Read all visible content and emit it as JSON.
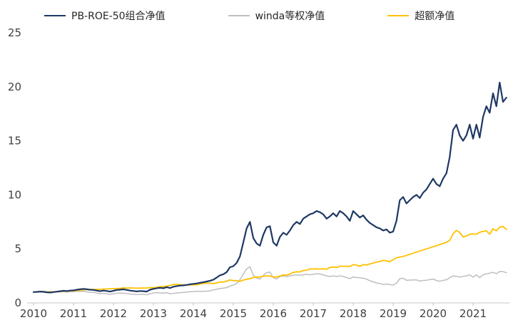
{
  "chart_data": {
    "type": "line",
    "title": "",
    "xlabel": "",
    "ylabel": "",
    "ylim": [
      0,
      25
    ],
    "y_ticks": [
      0,
      5,
      10,
      15,
      20,
      25
    ],
    "x_tick_labels": [
      "2010",
      "2011",
      "2012",
      "2013",
      "2014",
      "2015",
      "2016",
      "2017",
      "2018",
      "2019",
      "2020",
      "2021"
    ],
    "x_unit": "monthly",
    "x_start": "2010-01",
    "grid": false,
    "legend_position": "top",
    "axis_color": "#c6c6c6",
    "series": [
      {
        "name": "PB-ROE-50组合净值",
        "color": "#1f3864",
        "values": [
          1.0,
          1.02,
          1.05,
          1.03,
          0.98,
          0.96,
          1.0,
          1.04,
          1.08,
          1.12,
          1.1,
          1.14,
          1.16,
          1.22,
          1.26,
          1.3,
          1.26,
          1.22,
          1.2,
          1.14,
          1.08,
          1.14,
          1.1,
          1.05,
          1.12,
          1.2,
          1.22,
          1.26,
          1.2,
          1.14,
          1.1,
          1.06,
          1.1,
          1.08,
          1.05,
          1.22,
          1.3,
          1.36,
          1.4,
          1.36,
          1.46,
          1.38,
          1.5,
          1.56,
          1.6,
          1.62,
          1.66,
          1.72,
          1.76,
          1.8,
          1.86,
          1.92,
          1.98,
          2.05,
          2.15,
          2.35,
          2.55,
          2.65,
          2.85,
          3.3,
          3.4,
          3.7,
          4.3,
          5.6,
          6.9,
          7.5,
          6.0,
          5.5,
          5.3,
          6.3,
          7.0,
          7.1,
          5.6,
          5.3,
          6.1,
          6.5,
          6.3,
          6.7,
          7.2,
          7.5,
          7.3,
          7.8,
          8.0,
          8.2,
          8.3,
          8.5,
          8.4,
          8.2,
          7.8,
          8.0,
          8.3,
          8.0,
          8.5,
          8.3,
          8.0,
          7.6,
          8.5,
          8.2,
          7.9,
          8.1,
          7.7,
          7.4,
          7.2,
          7.0,
          6.9,
          6.7,
          6.8,
          6.5,
          6.6,
          7.6,
          9.5,
          9.8,
          9.2,
          9.5,
          9.8,
          10.0,
          9.7,
          10.2,
          10.5,
          11.0,
          11.5,
          11.0,
          10.8,
          11.5,
          12.0,
          13.5,
          16.0,
          16.5,
          15.5,
          15.0,
          15.5,
          16.5,
          15.2,
          16.5,
          15.3,
          17.2,
          18.2,
          17.6,
          19.4,
          18.2,
          20.4,
          18.6,
          19.0
        ]
      },
      {
        "name": "winda等权净值",
        "color": "#bfbfbf",
        "values": [
          1.0,
          1.01,
          1.03,
          0.99,
          0.95,
          0.93,
          0.97,
          1.0,
          1.02,
          1.05,
          1.01,
          1.03,
          1.04,
          1.07,
          1.06,
          1.08,
          1.02,
          0.98,
          0.97,
          0.92,
          0.86,
          0.89,
          0.85,
          0.8,
          0.85,
          0.9,
          0.92,
          0.9,
          0.88,
          0.82,
          0.8,
          0.78,
          0.8,
          0.79,
          0.76,
          0.86,
          0.92,
          0.95,
          0.93,
          0.9,
          0.95,
          0.85,
          0.88,
          0.92,
          0.95,
          0.97,
          1.0,
          1.03,
          1.05,
          1.08,
          1.06,
          1.06,
          1.09,
          1.12,
          1.2,
          1.27,
          1.32,
          1.37,
          1.42,
          1.55,
          1.65,
          1.8,
          2.15,
          2.65,
          3.15,
          3.35,
          2.55,
          2.3,
          2.2,
          2.55,
          2.8,
          2.85,
          2.35,
          2.2,
          2.45,
          2.5,
          2.45,
          2.5,
          2.55,
          2.6,
          2.55,
          2.6,
          2.65,
          2.6,
          2.65,
          2.7,
          2.68,
          2.6,
          2.5,
          2.45,
          2.5,
          2.45,
          2.5,
          2.45,
          2.35,
          2.25,
          2.4,
          2.35,
          2.33,
          2.28,
          2.2,
          2.05,
          1.95,
          1.85,
          1.8,
          1.7,
          1.75,
          1.7,
          1.65,
          1.82,
          2.24,
          2.28,
          2.09,
          2.11,
          2.13,
          2.13,
          2.02,
          2.08,
          2.1,
          2.16,
          2.21,
          2.08,
          2.0,
          2.09,
          2.14,
          2.33,
          2.5,
          2.46,
          2.38,
          2.46,
          2.5,
          2.6,
          2.38,
          2.6,
          2.34,
          2.6,
          2.7,
          2.75,
          2.83,
          2.7,
          2.91,
          2.9,
          2.79
        ]
      },
      {
        "name": "超额净值",
        "color": "#ffc000",
        "values": [
          1.0,
          1.01,
          1.02,
          1.04,
          1.03,
          1.03,
          1.03,
          1.04,
          1.06,
          1.07,
          1.09,
          1.11,
          1.12,
          1.14,
          1.19,
          1.2,
          1.24,
          1.24,
          1.24,
          1.24,
          1.26,
          1.28,
          1.29,
          1.31,
          1.32,
          1.33,
          1.33,
          1.4,
          1.36,
          1.39,
          1.38,
          1.36,
          1.38,
          1.37,
          1.38,
          1.42,
          1.41,
          1.43,
          1.51,
          1.51,
          1.54,
          1.62,
          1.7,
          1.7,
          1.68,
          1.67,
          1.66,
          1.67,
          1.68,
          1.67,
          1.75,
          1.81,
          1.82,
          1.83,
          1.79,
          1.85,
          1.93,
          1.93,
          2.01,
          2.13,
          2.06,
          2.06,
          2.0,
          2.11,
          2.19,
          2.24,
          2.35,
          2.39,
          2.41,
          2.47,
          2.5,
          2.49,
          2.38,
          2.41,
          2.49,
          2.6,
          2.57,
          2.68,
          2.82,
          2.88,
          2.86,
          3.0,
          3.02,
          3.15,
          3.13,
          3.15,
          3.13,
          3.15,
          3.12,
          3.27,
          3.32,
          3.27,
          3.4,
          3.39,
          3.4,
          3.38,
          3.54,
          3.49,
          3.39,
          3.55,
          3.5,
          3.61,
          3.69,
          3.78,
          3.83,
          3.94,
          3.89,
          3.82,
          4.0,
          4.18,
          4.24,
          4.3,
          4.4,
          4.5,
          4.6,
          4.7,
          4.8,
          4.9,
          5.0,
          5.09,
          5.2,
          5.29,
          5.4,
          5.5,
          5.61,
          5.79,
          6.4,
          6.71,
          6.51,
          6.1,
          6.2,
          6.35,
          6.39,
          6.35,
          6.54,
          6.62,
          6.67,
          6.36,
          6.86,
          6.67,
          7.01,
          7.07,
          6.81
        ]
      }
    ]
  }
}
